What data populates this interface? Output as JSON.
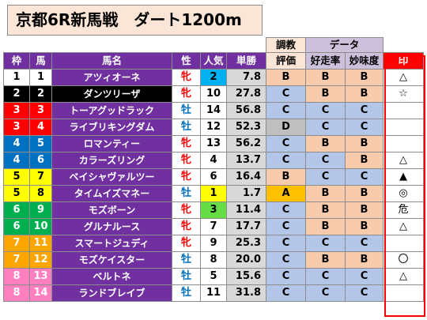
{
  "title": "京都6R新馬戦　ダート1200m",
  "header": {
    "group_eval_line1": "調教",
    "group_eval_line2": "評価",
    "group_data": "データ",
    "col_waku": "枠",
    "col_uma": "馬",
    "col_name": "馬名",
    "col_sex": "性",
    "col_pop": "人気",
    "col_odds": "単勝",
    "col_run": "好走率",
    "col_taste": "妙味度",
    "col_mark": "印"
  },
  "colors": {
    "waku": {
      "1": "#ffffff",
      "2": "#000000",
      "3": "#ff0000",
      "4": "#0070c0",
      "5": "#ffff00",
      "6": "#00b050",
      "7": "#ffa500",
      "8": "#ff7fbf"
    },
    "grade": {
      "A": "#ffc000",
      "B": "#f8cbad",
      "C": "#b4c6e7",
      "D": "#bfbfbf"
    },
    "pop_top3": {
      "1": "#ffff00",
      "2": "#00b0f0",
      "3": "#66dd44"
    }
  },
  "rows": [
    {
      "waku": "1",
      "uma": "1",
      "name": "アツィオーネ",
      "sex": "牝",
      "pop": "2",
      "odds": "7.8",
      "eval": "B",
      "run": "B",
      "taste": "B",
      "mark": "△"
    },
    {
      "waku": "2",
      "uma": "2",
      "name": "ダンツリーザ",
      "sex": "牝",
      "pop": "10",
      "odds": "27.8",
      "eval": "C",
      "run": "B",
      "taste": "B",
      "mark": "☆"
    },
    {
      "waku": "3",
      "uma": "3",
      "name": "トーアグッドラック",
      "sex": "牡",
      "pop": "14",
      "odds": "56.8",
      "eval": "C",
      "run": "C",
      "taste": "C",
      "mark": ""
    },
    {
      "waku": "3",
      "uma": "4",
      "name": "ライブリキングダム",
      "sex": "牡",
      "pop": "12",
      "odds": "52.3",
      "eval": "D",
      "run": "C",
      "taste": "C",
      "mark": ""
    },
    {
      "waku": "4",
      "uma": "5",
      "name": "ロマンティー",
      "sex": "牝",
      "pop": "13",
      "odds": "56.2",
      "eval": "C",
      "run": "B",
      "taste": "B",
      "mark": ""
    },
    {
      "waku": "4",
      "uma": "6",
      "name": "カラーズリング",
      "sex": "牝",
      "pop": "4",
      "odds": "13.7",
      "eval": "C",
      "run": "C",
      "taste": "B",
      "mark": "△"
    },
    {
      "waku": "5",
      "uma": "7",
      "name": "ベイシャヴァルツー",
      "sex": "牝",
      "pop": "6",
      "odds": "16.4",
      "eval": "B",
      "run": "C",
      "taste": "C",
      "mark": "▲"
    },
    {
      "waku": "5",
      "uma": "8",
      "name": "タイムイズマネー",
      "sex": "牡",
      "pop": "1",
      "odds": "1.7",
      "eval": "A",
      "run": "B",
      "taste": "B",
      "mark": "◎"
    },
    {
      "waku": "6",
      "uma": "9",
      "name": "モズボーン",
      "sex": "牝",
      "pop": "3",
      "odds": "11.4",
      "eval": "C",
      "run": "B",
      "taste": "B",
      "mark": "危"
    },
    {
      "waku": "6",
      "uma": "10",
      "name": "グルナルース",
      "sex": "牝",
      "pop": "7",
      "odds": "17.7",
      "eval": "C",
      "run": "B",
      "taste": "B",
      "mark": "△"
    },
    {
      "waku": "7",
      "uma": "11",
      "name": "スマートジュディ",
      "sex": "牝",
      "pop": "9",
      "odds": "25.3",
      "eval": "C",
      "run": "C",
      "taste": "C",
      "mark": ""
    },
    {
      "waku": "7",
      "uma": "12",
      "name": "モズケイスター",
      "sex": "牡",
      "pop": "8",
      "odds": "20.0",
      "eval": "C",
      "run": "B",
      "taste": "B",
      "mark": "〇"
    },
    {
      "waku": "8",
      "uma": "13",
      "name": "ベルトネ",
      "sex": "牡",
      "pop": "5",
      "odds": "15.6",
      "eval": "C",
      "run": "C",
      "taste": "C",
      "mark": "△"
    },
    {
      "waku": "8",
      "uma": "14",
      "name": "ランドブレイブ",
      "sex": "牡",
      "pop": "11",
      "odds": "31.8",
      "eval": "C",
      "run": "C",
      "taste": "C",
      "mark": ""
    }
  ]
}
